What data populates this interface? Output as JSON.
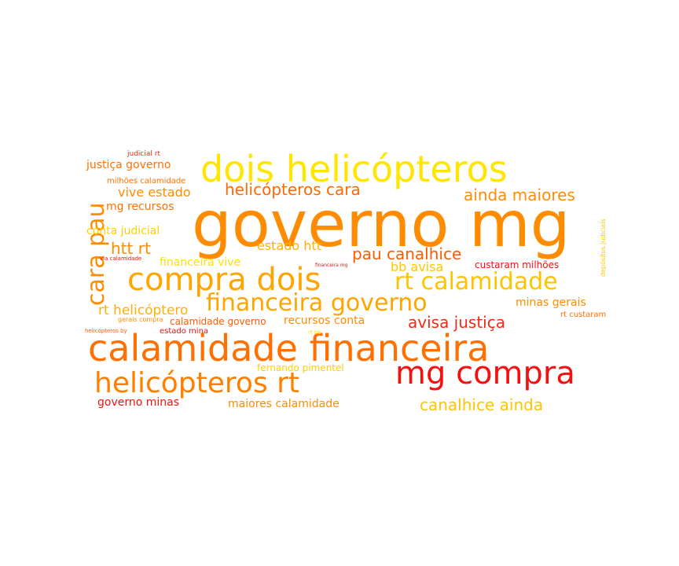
{
  "palette": {
    "yellow": "#ffe500",
    "gold": "#ffc400",
    "amber": "#ffa500",
    "orange": "#ff8c00",
    "dark_orange": "#ff7000",
    "red_orange": "#ff4500",
    "red": "#f21010"
  },
  "words": [
    {
      "text": "governo mg",
      "color": "#ff8c00"
    },
    {
      "text": "dois helicópteros",
      "color": "#ffe500"
    },
    {
      "text": "calamidade financeira",
      "color": "#ff7000"
    },
    {
      "text": "compra dois",
      "color": "#ffa500"
    },
    {
      "text": "mg compra",
      "color": "#f21010"
    },
    {
      "text": "helicópteros rt",
      "color": "#ff7f00"
    },
    {
      "text": "rt calamidade",
      "color": "#ffc400"
    },
    {
      "text": "financeira governo",
      "color": "#ffa500"
    },
    {
      "text": "helicópteros cara",
      "color": "#ff6a00"
    },
    {
      "text": "ainda maiores",
      "color": "#ff8c00"
    },
    {
      "text": "cara pau",
      "color": "#ff8c00"
    },
    {
      "text": "pau canalhice",
      "color": "#ff5a00"
    },
    {
      "text": "canalhice ainda",
      "color": "#ffc400"
    },
    {
      "text": "avisa justiça",
      "color": "#f52a10"
    },
    {
      "text": "htt rt",
      "color": "#ff8c00"
    },
    {
      "text": "rt helicóptero",
      "color": "#ffb000"
    },
    {
      "text": "justiça governo",
      "color": "#ff7000"
    },
    {
      "text": "vive estado",
      "color": "#ff8c00"
    },
    {
      "text": "mg recursos",
      "color": "#ff7000"
    },
    {
      "text": "estado htt",
      "color": "#ffb000"
    },
    {
      "text": "bb avisa",
      "color": "#ffc400"
    },
    {
      "text": "conta judicial",
      "color": "#ffd000"
    },
    {
      "text": "financeira vive",
      "color": "#ffe000"
    },
    {
      "text": "minas gerais",
      "color": "#ff8c00"
    },
    {
      "text": "custaram milhões",
      "color": "#f21010"
    },
    {
      "text": "recursos conta",
      "color": "#ff8c00"
    },
    {
      "text": "calamidade governo",
      "color": "#ff5a00"
    },
    {
      "text": "milhões calamidade",
      "color": "#ff7000"
    },
    {
      "text": "governo minas",
      "color": "#f21010"
    },
    {
      "text": "maiores calamidade",
      "color": "#ff8c00"
    },
    {
      "text": "fernando pimentel",
      "color": "#ffd000"
    },
    {
      "text": "rt custaram",
      "color": "#ff7000"
    },
    {
      "text": "estado mina",
      "color": "#f21010"
    },
    {
      "text": "judicial rt",
      "color": "#f52a10"
    },
    {
      "text": "via calamidade",
      "color": "#f21010"
    },
    {
      "text": "gerais compra",
      "color": "#ff8c00"
    },
    {
      "text": "helicópteros by",
      "color": "#ff5a00"
    },
    {
      "text": "financeira mg",
      "color": "#f21010"
    },
    {
      "text": "rt bb",
      "color": "#ffe000"
    },
    {
      "text": "depósitos judiciais",
      "color": "#ffc400"
    }
  ]
}
